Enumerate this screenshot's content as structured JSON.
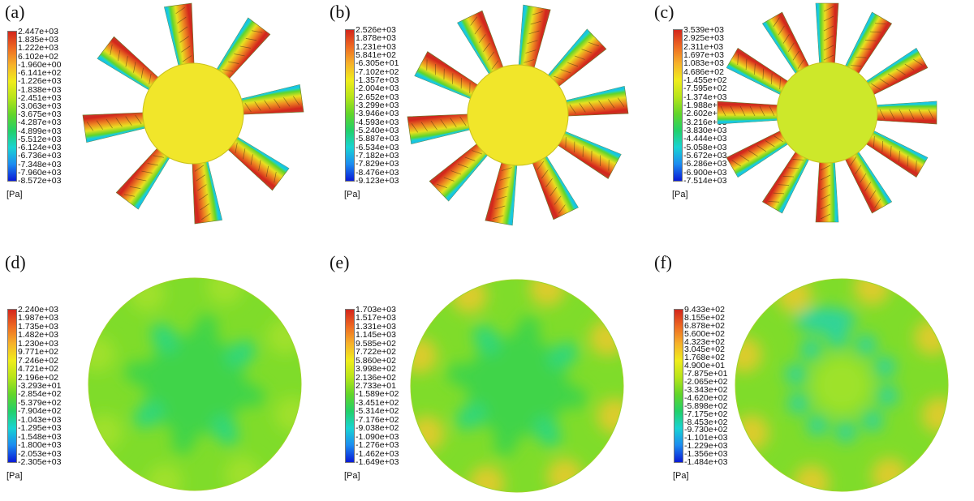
{
  "colors": {
    "scale": [
      "#0a1bd6",
      "#1c8cf0",
      "#19d3d3",
      "#22d06a",
      "#62d52a",
      "#b7e51a",
      "#f0ec1c",
      "#f6b12a",
      "#ee6a22",
      "#d3261c"
    ],
    "blade_hot": "#d8452a",
    "hub": "#f1e62a"
  },
  "panels": [
    {
      "label": "(a)",
      "unit": "[Pa]",
      "ticks": [
        "2.447e+03",
        "1.835e+03",
        "1.222e+03",
        "6.102e+02",
        "-1.960e+00",
        "-6.141e+02",
        "-1.226e+03",
        "-1.838e+03",
        "-2.451e+03",
        "-3.063e+03",
        "-3.675e+03",
        "-4.287e+03",
        "-4.899e+03",
        "-5.512e+03",
        "-6.124e+03",
        "-6.736e+03",
        "-7.348e+03",
        "-7.960e+03",
        "-8.572e+03"
      ]
    },
    {
      "label": "(b)",
      "unit": "[Pa]",
      "ticks": [
        "2.526e+03",
        "1.878e+03",
        "1.231e+03",
        "5.841e+02",
        "-6.305e+01",
        "-7.102e+02",
        "-1.357e+03",
        "-2.004e+03",
        "-2.652e+03",
        "-3.299e+03",
        "-3.946e+03",
        "-4.593e+03",
        "-5.240e+03",
        "-5.887e+03",
        "-6.534e+03",
        "-7.182e+03",
        "-7.829e+03",
        "-8.476e+03",
        "-9.123e+03"
      ]
    },
    {
      "label": "(c)",
      "unit": "[Pa]",
      "ticks": [
        "3.539e+03",
        "2.925e+03",
        "2.311e+03",
        "1.697e+03",
        "1.083e+03",
        "4.686e+02",
        "-1.455e+02",
        "-7.595e+02",
        "-1.374e+03",
        "-1.988e+03",
        "-2.602e+03",
        "-3.216e+03",
        "-3.830e+03",
        "-4.444e+03",
        "-5.058e+03",
        "-5.672e+03",
        "-6.286e+03",
        "-6.900e+03",
        "-7.514e+03"
      ]
    },
    {
      "label": "(d)",
      "unit": "[Pa]",
      "ticks": [
        "2.240e+03",
        "1.987e+03",
        "1.735e+03",
        "1.482e+03",
        "1.230e+03",
        "9.771e+02",
        "7.246e+02",
        "4.721e+02",
        "2.196e+02",
        "-3.293e+01",
        "-2.854e+02",
        "-5.379e+02",
        "-7.904e+02",
        "-1.043e+03",
        "-1.295e+03",
        "-1.548e+03",
        "-1.800e+03",
        "-2.053e+03",
        "-2.305e+03"
      ]
    },
    {
      "label": "(e)",
      "unit": "[Pa]",
      "ticks": [
        "1.703e+03",
        "1.517e+03",
        "1.331e+03",
        "1.145e+03",
        "9.585e+02",
        "7.722e+02",
        "5.860e+02",
        "3.998e+02",
        "2.136e+02",
        "2.733e+01",
        "-1.589e+02",
        "-3.451e+02",
        "-5.314e+02",
        "-7.176e+02",
        "-9.038e+02",
        "-1.090e+03",
        "-1.276e+03",
        "-1.462e+03",
        "-1.649e+03"
      ]
    },
    {
      "label": "(f)",
      "unit": "[Pa]",
      "ticks": [
        "9.433e+02",
        "8.155e+02",
        "6.878e+02",
        "5.600e+02",
        "4.323e+02",
        "3.045e+02",
        "1.768e+02",
        "4.900e+01",
        "-7.875e+01",
        "-2.065e+02",
        "-3.343e+02",
        "-4.620e+02",
        "-5.898e+02",
        "-7.175e+02",
        "-8.453e+02",
        "-9.730e+02",
        "-1.101e+03",
        "-1.229e+03",
        "-1.356e+03",
        "-1.484e+03"
      ]
    }
  ]
}
